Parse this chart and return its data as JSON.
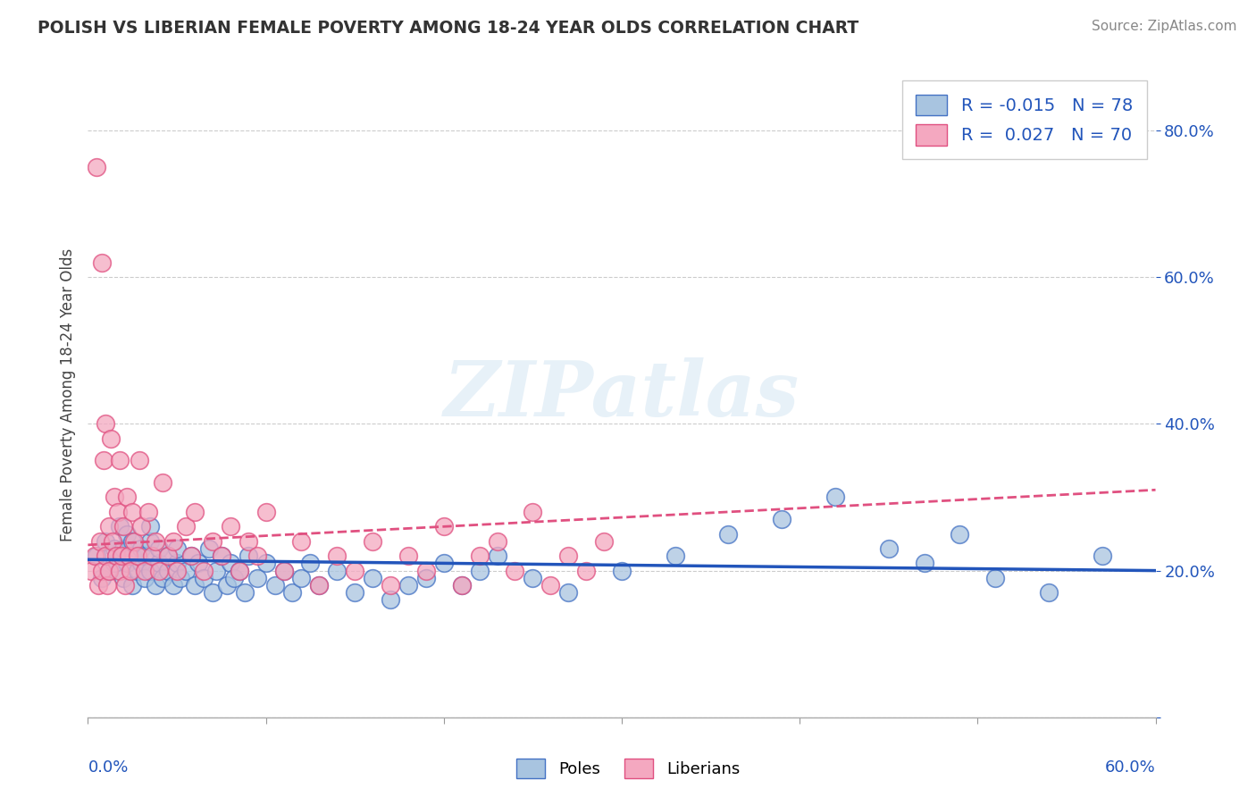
{
  "title": "POLISH VS LIBERIAN FEMALE POVERTY AMONG 18-24 YEAR OLDS CORRELATION CHART",
  "source": "Source: ZipAtlas.com",
  "ylabel": "Female Poverty Among 18-24 Year Olds",
  "xlim": [
    0.0,
    0.6
  ],
  "ylim": [
    0.0,
    0.88
  ],
  "ytick_vals": [
    0.0,
    0.2,
    0.4,
    0.6,
    0.8
  ],
  "ytick_labels": [
    "",
    "20.0%",
    "40.0%",
    "60.0%",
    "80.0%"
  ],
  "xtick_vals": [
    0.0,
    0.1,
    0.2,
    0.3,
    0.4,
    0.5,
    0.6
  ],
  "poles_R": -0.015,
  "poles_N": 78,
  "liberians_R": 0.027,
  "liberians_N": 70,
  "poles_color": "#a8c4e0",
  "liberians_color": "#f4a8c0",
  "poles_edge_color": "#4472c4",
  "liberians_edge_color": "#e05080",
  "trend_poles_color": "#2255bb",
  "trend_liberians_color": "#e05080",
  "background_color": "#ffffff",
  "watermark": "ZIPatlas",
  "poles_x": [
    0.005,
    0.008,
    0.01,
    0.012,
    0.015,
    0.015,
    0.018,
    0.02,
    0.02,
    0.022,
    0.022,
    0.025,
    0.025,
    0.025,
    0.028,
    0.03,
    0.03,
    0.032,
    0.032,
    0.035,
    0.035,
    0.035,
    0.038,
    0.04,
    0.04,
    0.042,
    0.045,
    0.045,
    0.048,
    0.05,
    0.05,
    0.052,
    0.055,
    0.058,
    0.06,
    0.062,
    0.065,
    0.068,
    0.07,
    0.072,
    0.075,
    0.078,
    0.08,
    0.082,
    0.085,
    0.088,
    0.09,
    0.095,
    0.1,
    0.105,
    0.11,
    0.115,
    0.12,
    0.125,
    0.13,
    0.14,
    0.15,
    0.16,
    0.17,
    0.18,
    0.19,
    0.2,
    0.21,
    0.22,
    0.23,
    0.25,
    0.27,
    0.3,
    0.33,
    0.36,
    0.39,
    0.42,
    0.45,
    0.47,
    0.49,
    0.51,
    0.54,
    0.57
  ],
  "poles_y": [
    0.22,
    0.19,
    0.24,
    0.2,
    0.21,
    0.23,
    0.26,
    0.19,
    0.23,
    0.21,
    0.25,
    0.18,
    0.22,
    0.24,
    0.2,
    0.21,
    0.23,
    0.19,
    0.22,
    0.2,
    0.24,
    0.26,
    0.18,
    0.21,
    0.23,
    0.19,
    0.22,
    0.2,
    0.18,
    0.21,
    0.23,
    0.19,
    0.2,
    0.22,
    0.18,
    0.21,
    0.19,
    0.23,
    0.17,
    0.2,
    0.22,
    0.18,
    0.21,
    0.19,
    0.2,
    0.17,
    0.22,
    0.19,
    0.21,
    0.18,
    0.2,
    0.17,
    0.19,
    0.21,
    0.18,
    0.2,
    0.17,
    0.19,
    0.16,
    0.18,
    0.19,
    0.21,
    0.18,
    0.2,
    0.22,
    0.19,
    0.17,
    0.2,
    0.22,
    0.25,
    0.27,
    0.3,
    0.23,
    0.21,
    0.25,
    0.19,
    0.17,
    0.22
  ],
  "liberians_x": [
    0.002,
    0.004,
    0.005,
    0.006,
    0.007,
    0.008,
    0.008,
    0.009,
    0.01,
    0.01,
    0.011,
    0.012,
    0.012,
    0.013,
    0.014,
    0.015,
    0.016,
    0.017,
    0.018,
    0.018,
    0.019,
    0.02,
    0.021,
    0.022,
    0.023,
    0.024,
    0.025,
    0.026,
    0.028,
    0.029,
    0.03,
    0.032,
    0.034,
    0.036,
    0.038,
    0.04,
    0.042,
    0.045,
    0.048,
    0.05,
    0.055,
    0.058,
    0.06,
    0.065,
    0.07,
    0.075,
    0.08,
    0.085,
    0.09,
    0.095,
    0.1,
    0.11,
    0.12,
    0.13,
    0.14,
    0.15,
    0.16,
    0.17,
    0.18,
    0.19,
    0.2,
    0.21,
    0.22,
    0.23,
    0.24,
    0.25,
    0.26,
    0.27,
    0.28,
    0.29
  ],
  "liberians_y": [
    0.2,
    0.22,
    0.75,
    0.18,
    0.24,
    0.2,
    0.62,
    0.35,
    0.22,
    0.4,
    0.18,
    0.26,
    0.2,
    0.38,
    0.24,
    0.3,
    0.22,
    0.28,
    0.2,
    0.35,
    0.22,
    0.26,
    0.18,
    0.3,
    0.22,
    0.2,
    0.28,
    0.24,
    0.22,
    0.35,
    0.26,
    0.2,
    0.28,
    0.22,
    0.24,
    0.2,
    0.32,
    0.22,
    0.24,
    0.2,
    0.26,
    0.22,
    0.28,
    0.2,
    0.24,
    0.22,
    0.26,
    0.2,
    0.24,
    0.22,
    0.28,
    0.2,
    0.24,
    0.18,
    0.22,
    0.2,
    0.24,
    0.18,
    0.22,
    0.2,
    0.26,
    0.18,
    0.22,
    0.24,
    0.2,
    0.28,
    0.18,
    0.22,
    0.2,
    0.24
  ]
}
